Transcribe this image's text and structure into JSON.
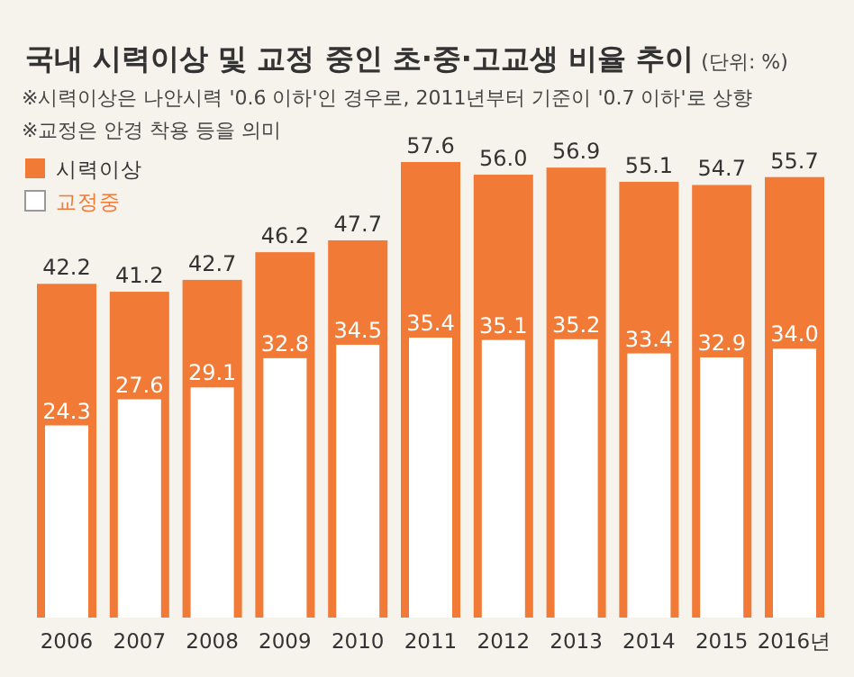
{
  "chart_data": {
    "type": "bar",
    "title": "국내 시력이상 및 교정 중인 초·중·고교생 비율 추이",
    "subtitle": "(단위: %)",
    "annotations": [
      "※시력이상은 나안시력 '0.6 이하'인 경우로, 2011년부터 기준이 '0.7 이하'로 상향",
      "※교정은 안경 착용 등을 의미"
    ],
    "categories": [
      "2006",
      "2007",
      "2008",
      "2009",
      "2010",
      "2011",
      "2012",
      "2013",
      "2014",
      "2015",
      "2016년"
    ],
    "series": [
      {
        "name": "시력이상",
        "color": "#f07a36",
        "values": [
          42.2,
          41.2,
          42.7,
          46.2,
          47.7,
          57.6,
          56.0,
          56.9,
          55.1,
          54.7,
          55.7
        ],
        "value_labels": [
          "42.2",
          "41.2",
          "42.7",
          "46.2",
          "47.7",
          "57.6",
          "56.0",
          "56.9",
          "55.1",
          "54.7",
          "55.7"
        ]
      },
      {
        "name": "교정중",
        "color": "#ffffff",
        "values": [
          24.3,
          27.6,
          29.1,
          32.8,
          34.5,
          35.4,
          35.1,
          35.2,
          33.4,
          32.9,
          34.0
        ],
        "value_labels": [
          "24.3",
          "27.6",
          "29.1",
          "32.8",
          "34.5",
          "35.4",
          "35.1",
          "35.2",
          "33.4",
          "32.9",
          "34.0"
        ]
      }
    ],
    "legend": "top left"
  }
}
